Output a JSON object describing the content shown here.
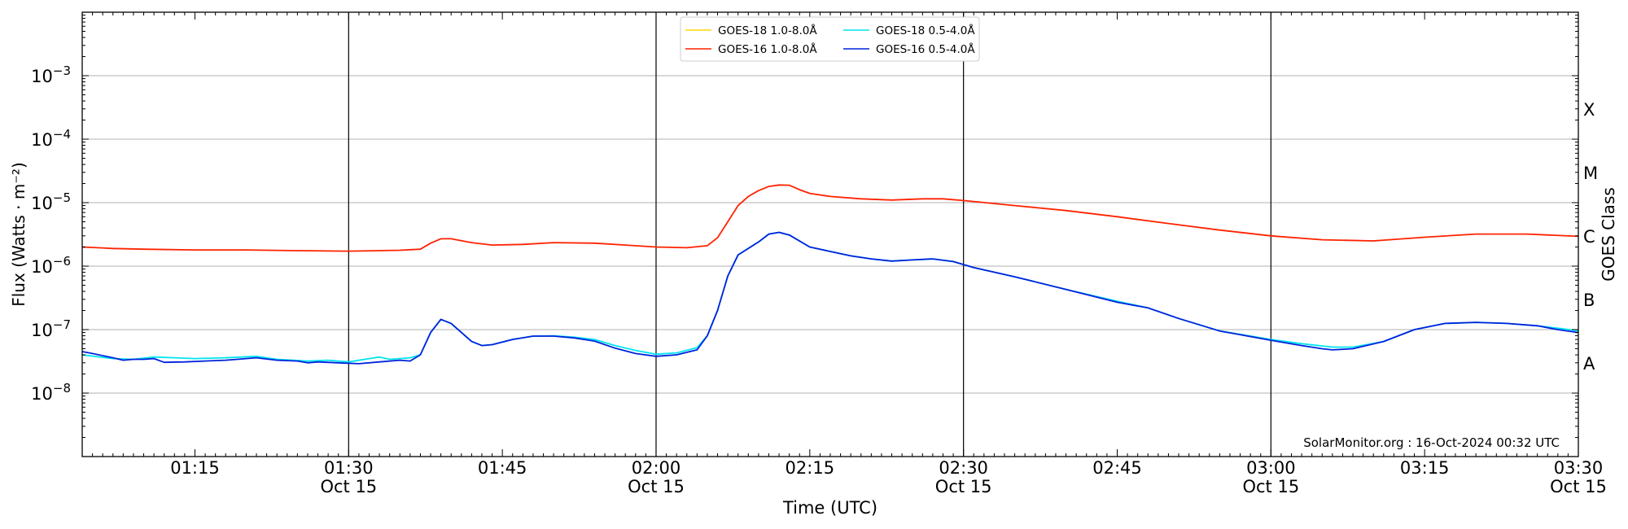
{
  "chart_data": {
    "type": "line",
    "xlabel": "Time (UTC)",
    "ylabel": "Flux (Watts · m⁻²)",
    "y2label": "GOES Class",
    "yscale": "log",
    "ylim": [
      1e-09,
      0.01
    ],
    "xlim": [
      "2024-10-15 01:04",
      "2024-10-15 03:30"
    ],
    "y_ticks": [
      {
        "value": 0.001,
        "exp": "−3"
      },
      {
        "value": 0.0001,
        "exp": "−4"
      },
      {
        "value": 1e-05,
        "exp": "−5"
      },
      {
        "value": 1e-06,
        "exp": "−6"
      },
      {
        "value": 1e-07,
        "exp": "−7"
      },
      {
        "value": 1e-08,
        "exp": "−8"
      }
    ],
    "x_ticks": [
      {
        "time": "01:15",
        "date": ""
      },
      {
        "time": "01:30",
        "date": "Oct 15"
      },
      {
        "time": "01:45",
        "date": ""
      },
      {
        "time": "02:00",
        "date": "Oct 15"
      },
      {
        "time": "02:15",
        "date": ""
      },
      {
        "time": "02:30",
        "date": "Oct 15"
      },
      {
        "time": "02:45",
        "date": ""
      },
      {
        "time": "03:00",
        "date": "Oct 15"
      },
      {
        "time": "03:15",
        "date": ""
      },
      {
        "time": "03:30",
        "date": "Oct 15"
      }
    ],
    "vlines": [
      "01:30",
      "02:00",
      "02:30",
      "03:00"
    ],
    "goes_classes": [
      {
        "label": "A",
        "value": 3e-08
      },
      {
        "label": "B",
        "value": 3e-07
      },
      {
        "label": "C",
        "value": 3e-06
      },
      {
        "label": "M",
        "value": 3e-05
      },
      {
        "label": "X",
        "value": 0.0003
      }
    ],
    "grid": true,
    "legend_position": "top-center",
    "annotation": "SolarMonitor.org : 16-Oct-2024 00:32 UTC",
    "series": [
      {
        "name": "GOES-18 1.0-8.0Å",
        "color": "#ffd700",
        "legend_only": true,
        "points": []
      },
      {
        "name": "GOES-18 0.5-4.0Å",
        "color": "#00e5ee",
        "points": [
          [
            "01:04",
            4e-08
          ],
          [
            "01:07",
            3.5e-08
          ],
          [
            "01:09",
            3.4e-08
          ],
          [
            "01:11",
            3.7e-08
          ],
          [
            "01:13",
            3.6e-08
          ],
          [
            "01:15",
            3.5e-08
          ],
          [
            "01:18",
            3.6e-08
          ],
          [
            "01:21",
            3.8e-08
          ],
          [
            "01:23",
            3.4e-08
          ],
          [
            "01:26",
            3.2e-08
          ],
          [
            "01:28",
            3.3e-08
          ],
          [
            "01:30",
            3.1e-08
          ],
          [
            "01:32",
            3.5e-08
          ],
          [
            "01:33",
            3.7e-08
          ],
          [
            "01:34",
            3.4e-08
          ],
          [
            "01:36",
            3.6e-08
          ],
          [
            "01:37",
            4e-08
          ],
          [
            "01:38",
            9e-08
          ],
          [
            "01:39",
            1.45e-07
          ],
          [
            "01:40",
            1.25e-07
          ],
          [
            "01:42",
            6.5e-08
          ],
          [
            "01:43",
            5.6e-08
          ],
          [
            "01:44",
            5.8e-08
          ],
          [
            "01:46",
            7e-08
          ],
          [
            "01:48",
            7.9e-08
          ],
          [
            "01:50",
            8e-08
          ],
          [
            "01:52",
            7.6e-08
          ],
          [
            "01:54",
            7e-08
          ],
          [
            "01:56",
            5.6e-08
          ],
          [
            "01:58",
            4.7e-08
          ],
          [
            "02:00",
            4.1e-08
          ],
          [
            "02:02",
            4.3e-08
          ],
          [
            "02:04",
            5.2e-08
          ],
          [
            "02:05",
            8e-08
          ],
          [
            "02:06",
            2e-07
          ],
          [
            "02:07",
            7e-07
          ],
          [
            "02:08",
            1.5e-06
          ],
          [
            "02:10",
            2.4e-06
          ],
          [
            "02:11",
            3.2e-06
          ],
          [
            "02:12",
            3.4e-06
          ],
          [
            "02:13",
            3.1e-06
          ],
          [
            "02:15",
            2e-06
          ],
          [
            "02:17",
            1.7e-06
          ],
          [
            "02:19",
            1.45e-06
          ],
          [
            "02:21",
            1.3e-06
          ],
          [
            "02:23",
            1.2e-06
          ],
          [
            "02:25",
            1.25e-06
          ],
          [
            "02:27",
            1.3e-06
          ],
          [
            "02:29",
            1.18e-06
          ],
          [
            "02:31",
            9.5e-07
          ],
          [
            "02:35",
            6.8e-07
          ],
          [
            "02:40",
            4.3e-07
          ],
          [
            "02:45",
            2.8e-07
          ],
          [
            "02:48",
            2.2e-07
          ],
          [
            "02:51",
            1.5e-07
          ],
          [
            "02:55",
            9.5e-08
          ],
          [
            "03:00",
            7e-08
          ],
          [
            "03:03",
            6e-08
          ],
          [
            "03:06",
            5.3e-08
          ],
          [
            "03:08",
            5.3e-08
          ],
          [
            "03:11",
            6.5e-08
          ],
          [
            "03:14",
            1e-07
          ],
          [
            "03:17",
            1.25e-07
          ],
          [
            "03:20",
            1.3e-07
          ],
          [
            "03:23",
            1.25e-07
          ],
          [
            "03:26",
            1.15e-07
          ],
          [
            "03:28",
            1.05e-07
          ],
          [
            "03:30",
            9.6e-08
          ]
        ]
      },
      {
        "name": "GOES-16 1.0-8.0Å",
        "color": "#ff2200",
        "points": [
          [
            "01:04",
            2e-06
          ],
          [
            "01:07",
            1.9e-06
          ],
          [
            "01:10",
            1.85e-06
          ],
          [
            "01:15",
            1.8e-06
          ],
          [
            "01:20",
            1.8e-06
          ],
          [
            "01:25",
            1.75e-06
          ],
          [
            "01:30",
            1.72e-06
          ],
          [
            "01:35",
            1.78e-06
          ],
          [
            "01:37",
            1.85e-06
          ],
          [
            "01:38",
            2.3e-06
          ],
          [
            "01:39",
            2.7e-06
          ],
          [
            "01:40",
            2.7e-06
          ],
          [
            "01:42",
            2.35e-06
          ],
          [
            "01:44",
            2.15e-06
          ],
          [
            "01:47",
            2.2e-06
          ],
          [
            "01:50",
            2.35e-06
          ],
          [
            "01:54",
            2.3e-06
          ],
          [
            "01:57",
            2.15e-06
          ],
          [
            "02:00",
            2e-06
          ],
          [
            "02:03",
            1.95e-06
          ],
          [
            "02:05",
            2.1e-06
          ],
          [
            "02:06",
            2.8e-06
          ],
          [
            "02:07",
            5e-06
          ],
          [
            "02:08",
            9e-06
          ],
          [
            "02:09",
            1.25e-05
          ],
          [
            "02:10",
            1.55e-05
          ],
          [
            "02:11",
            1.8e-05
          ],
          [
            "02:12",
            1.9e-05
          ],
          [
            "02:13",
            1.88e-05
          ],
          [
            "02:14",
            1.6e-05
          ],
          [
            "02:15",
            1.4e-05
          ],
          [
            "02:17",
            1.25e-05
          ],
          [
            "02:20",
            1.15e-05
          ],
          [
            "02:23",
            1.1e-05
          ],
          [
            "02:26",
            1.15e-05
          ],
          [
            "02:28",
            1.15e-05
          ],
          [
            "02:30",
            1.08e-05
          ],
          [
            "02:35",
            9e-06
          ],
          [
            "02:40",
            7.5e-06
          ],
          [
            "02:45",
            6e-06
          ],
          [
            "02:50",
            4.7e-06
          ],
          [
            "02:55",
            3.7e-06
          ],
          [
            "03:00",
            3e-06
          ],
          [
            "03:05",
            2.6e-06
          ],
          [
            "03:10",
            2.5e-06
          ],
          [
            "03:15",
            2.85e-06
          ],
          [
            "03:20",
            3.2e-06
          ],
          [
            "03:25",
            3.2e-06
          ],
          [
            "03:30",
            2.95e-06
          ]
        ]
      },
      {
        "name": "GOES-16 0.5-4.0Å",
        "color": "#0022dd",
        "points": [
          [
            "01:04",
            4.5e-08
          ],
          [
            "01:05",
            4.2e-08
          ],
          [
            "01:07",
            3.6e-08
          ],
          [
            "01:08",
            3.3e-08
          ],
          [
            "01:09",
            3.4e-08
          ],
          [
            "01:10",
            3.4e-08
          ],
          [
            "01:11",
            3.5e-08
          ],
          [
            "01:12",
            3.05e-08
          ],
          [
            "01:14",
            3.1e-08
          ],
          [
            "01:16",
            3.2e-08
          ],
          [
            "01:18",
            3.3e-08
          ],
          [
            "01:20",
            3.5e-08
          ],
          [
            "01:21",
            3.6e-08
          ],
          [
            "01:23",
            3.3e-08
          ],
          [
            "01:25",
            3.2e-08
          ],
          [
            "01:26",
            3e-08
          ],
          [
            "01:27",
            3.1e-08
          ],
          [
            "01:29",
            3e-08
          ],
          [
            "01:31",
            2.9e-08
          ],
          [
            "01:33",
            3.1e-08
          ],
          [
            "01:35",
            3.3e-08
          ],
          [
            "01:36",
            3.2e-08
          ],
          [
            "01:37",
            4e-08
          ],
          [
            "01:38",
            9e-08
          ],
          [
            "01:39",
            1.45e-07
          ],
          [
            "01:40",
            1.25e-07
          ],
          [
            "01:42",
            6.5e-08
          ],
          [
            "01:43",
            5.6e-08
          ],
          [
            "01:44",
            5.8e-08
          ],
          [
            "01:46",
            7e-08
          ],
          [
            "01:48",
            7.9e-08
          ],
          [
            "01:50",
            7.9e-08
          ],
          [
            "01:52",
            7.4e-08
          ],
          [
            "01:54",
            6.6e-08
          ],
          [
            "01:56",
            5.1e-08
          ],
          [
            "01:58",
            4.2e-08
          ],
          [
            "02:00",
            3.8e-08
          ],
          [
            "02:02",
            4e-08
          ],
          [
            "02:04",
            4.8e-08
          ],
          [
            "02:05",
            8e-08
          ],
          [
            "02:06",
            2e-07
          ],
          [
            "02:07",
            7e-07
          ],
          [
            "02:08",
            1.5e-06
          ],
          [
            "02:10",
            2.4e-06
          ],
          [
            "02:11",
            3.2e-06
          ],
          [
            "02:12",
            3.4e-06
          ],
          [
            "02:13",
            3.1e-06
          ],
          [
            "02:15",
            2e-06
          ],
          [
            "02:17",
            1.7e-06
          ],
          [
            "02:19",
            1.45e-06
          ],
          [
            "02:21",
            1.3e-06
          ],
          [
            "02:23",
            1.2e-06
          ],
          [
            "02:25",
            1.25e-06
          ],
          [
            "02:27",
            1.3e-06
          ],
          [
            "02:29",
            1.18e-06
          ],
          [
            "02:31",
            9.5e-07
          ],
          [
            "02:35",
            6.8e-07
          ],
          [
            "02:40",
            4.3e-07
          ],
          [
            "02:45",
            2.7e-07
          ],
          [
            "02:48",
            2.2e-07
          ],
          [
            "02:51",
            1.5e-07
          ],
          [
            "02:55",
            9.5e-08
          ],
          [
            "03:00",
            6.8e-08
          ],
          [
            "03:03",
            5.6e-08
          ],
          [
            "03:05",
            5e-08
          ],
          [
            "03:06",
            4.8e-08
          ],
          [
            "03:08",
            5e-08
          ],
          [
            "03:11",
            6.5e-08
          ],
          [
            "03:14",
            1e-07
          ],
          [
            "03:17",
            1.25e-07
          ],
          [
            "03:20",
            1.3e-07
          ],
          [
            "03:23",
            1.25e-07
          ],
          [
            "03:26",
            1.15e-07
          ],
          [
            "03:28",
            1e-07
          ],
          [
            "03:30",
            9e-08
          ]
        ]
      }
    ]
  }
}
